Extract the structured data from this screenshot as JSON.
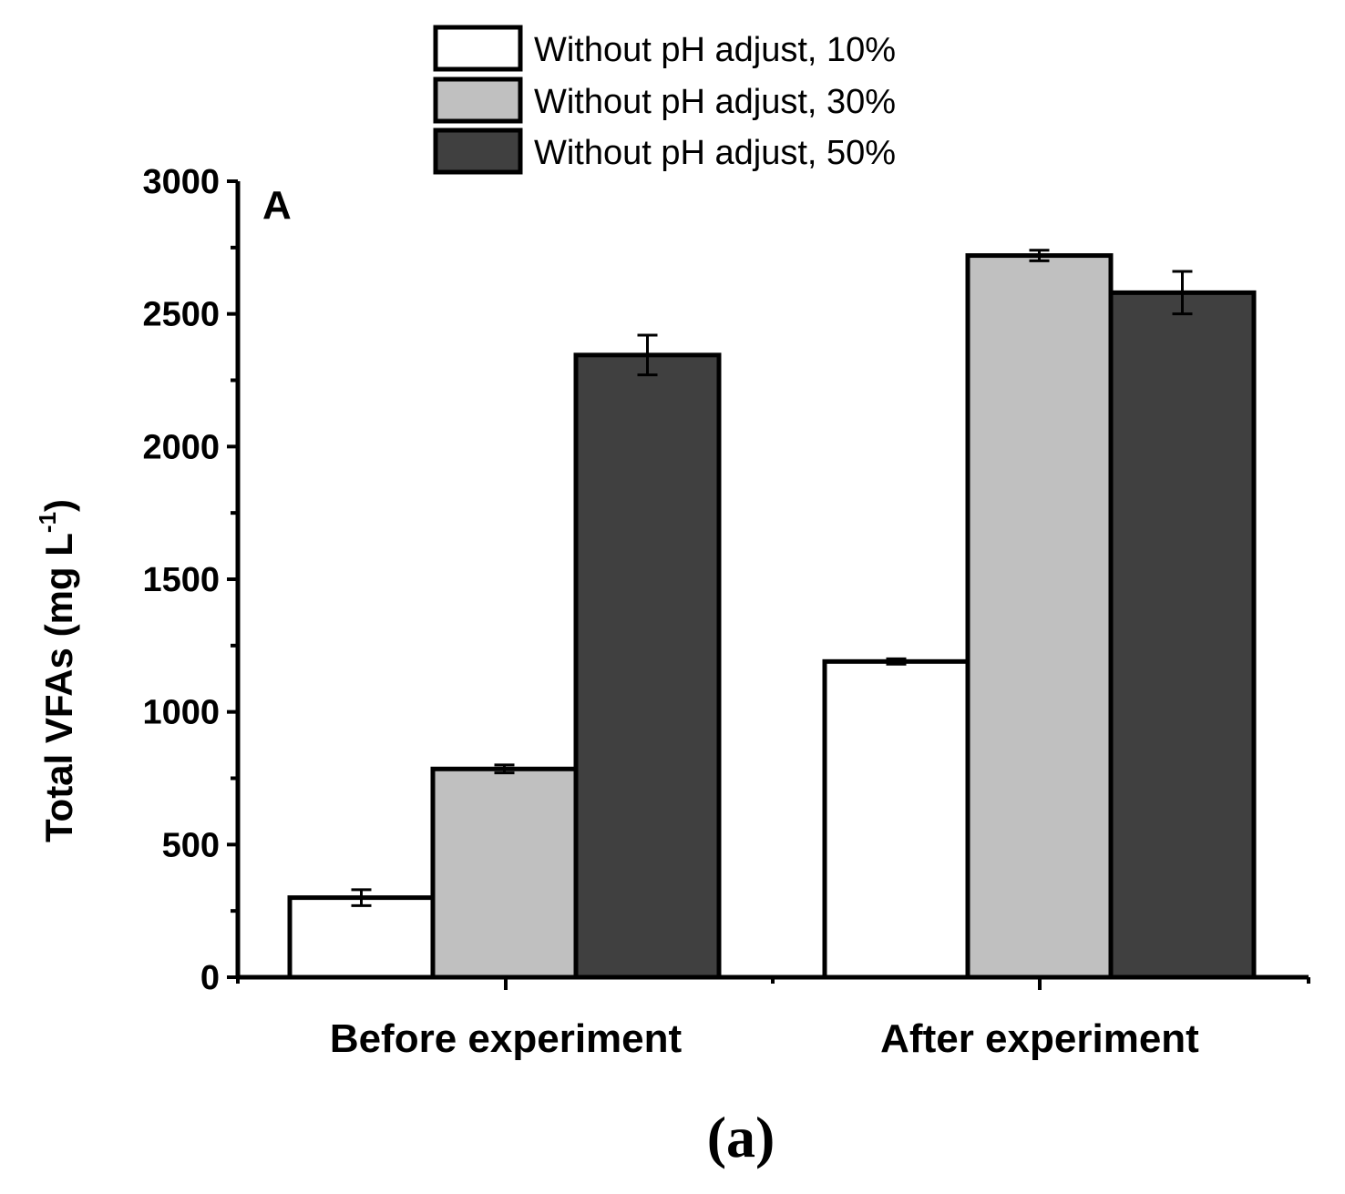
{
  "chart_data": {
    "type": "bar",
    "panel_label": "A",
    "caption": "(a)",
    "categories": [
      "Before experiment",
      "After experiment"
    ],
    "series": [
      {
        "name": "Without pH adjust, 10%",
        "color": "#ffffff",
        "values": [
          300,
          1190
        ],
        "errors": [
          30,
          10
        ]
      },
      {
        "name": "Without pH adjust, 30%",
        "color": "#c0c0c0",
        "values": [
          785,
          2720
        ],
        "errors": [
          15,
          20
        ]
      },
      {
        "name": "Without pH adjust, 50%",
        "color": "#404040",
        "values": [
          2345,
          2580
        ],
        "errors": [
          75,
          80
        ]
      }
    ],
    "ylabel": "Total VFAs (mg L",
    "ylabel_superscript": "-1",
    "ylabel_suffix": ")",
    "ylim": [
      0,
      3000
    ],
    "yticks": [
      0,
      500,
      1000,
      1500,
      2000,
      2500,
      3000
    ],
    "grid": false,
    "legend_position": "top"
  }
}
